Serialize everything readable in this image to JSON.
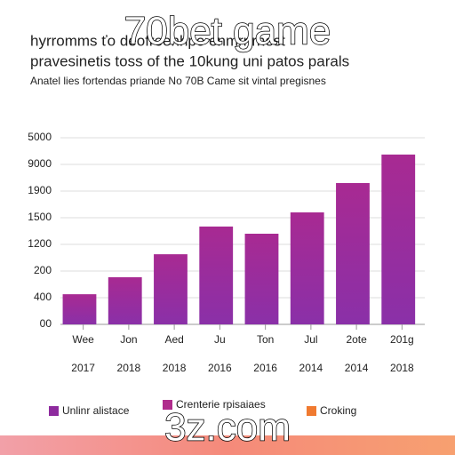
{
  "chart_data": {
    "type": "bar",
    "title": "hyrromms ťo deofreenhpo enmrnrnest",
    "title_line2": "pravesinetis toss of the 10kung uni patos parals",
    "subtitle": "Anatel lies fortendas priande No 70B Came sit vintal pregisnes",
    "watermark": "70bet game",
    "footer_watermark": "3z.com",
    "categories": [
      "Wee",
      "Jon",
      "Aed",
      "Ju",
      "Ton",
      "Jul",
      "2ote",
      "201g"
    ],
    "category_years": [
      "2017",
      "2018",
      "2018",
      "2016",
      "2016",
      "2014",
      "2014",
      "2018"
    ],
    "values": [
      1.13,
      1.77,
      2.63,
      3.67,
      3.4,
      4.2,
      5.3,
      6.37
    ],
    "color": "#9a2a9c",
    "ylim": [
      0,
      7
    ],
    "yticks": [
      {
        "value": 0,
        "label": "00"
      },
      {
        "value": 1,
        "label": "400"
      },
      {
        "value": 2,
        "label": "200"
      },
      {
        "value": 3,
        "label": "1200"
      },
      {
        "value": 4,
        "label": "1500"
      },
      {
        "value": 5,
        "label": "1900"
      },
      {
        "value": 6,
        "label": "9000"
      },
      {
        "value": 7,
        "label": "5000"
      }
    ],
    "grid": true,
    "legend": [
      {
        "name": "Unlinr alistace",
        "color": "#8e2b9e"
      },
      {
        "name": "Crenterie rpisaiaes",
        "color": "#b02c8c"
      },
      {
        "name": "Croking",
        "color": "#f07a30"
      }
    ]
  }
}
